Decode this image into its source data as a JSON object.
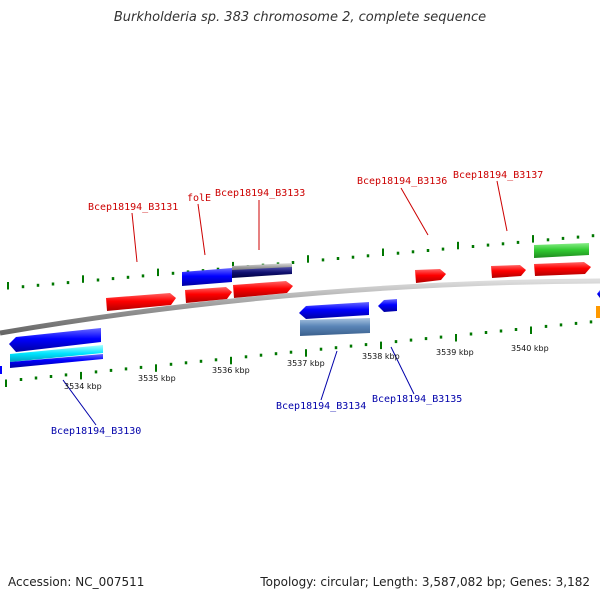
{
  "title": "Burkholderia sp. 383 chromosome 2, complete sequence",
  "footer": {
    "accession": "Accession: NC_007511",
    "summary": "Topology: circular; Length: 3,587,082 bp; Genes: 3,182"
  },
  "colors": {
    "forward_cds": "#ff0000",
    "reverse_cds": "#0000ff",
    "forward_label": "#cc0000",
    "reverse_label": "#0000aa",
    "rna": "#33cc33",
    "tick": "#007700",
    "backbone": "#888888"
  },
  "kbp_labels": [
    "3534 kbp",
    "3535 kbp",
    "3536 kbp",
    "3537 kbp",
    "3538 kbp",
    "3539 kbp",
    "3540 kbp"
  ],
  "gene_labels": {
    "forward": [
      "Bcep18194_B3131",
      "folE",
      "Bcep18194_B3133",
      "Bcep18194_B3136",
      "Bcep18194_B3137"
    ],
    "reverse": [
      "Bcep18194_B3130",
      "Bcep18194_B3134",
      "Bcep18194_B3135"
    ]
  }
}
